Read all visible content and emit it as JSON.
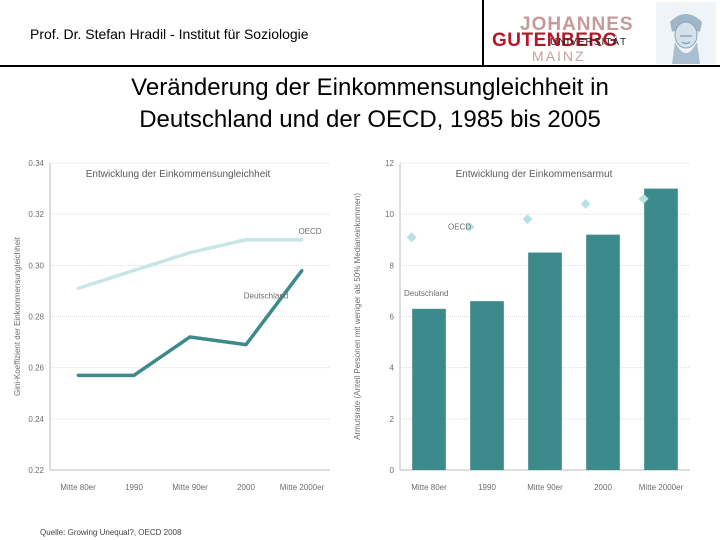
{
  "header": {
    "title": "Prof. Dr. Stefan Hradil - Institut für Soziologie",
    "logo_top": "JOHANNES",
    "logo_main": "GUTENBERG",
    "logo_univ": "UNIVERSITÄT",
    "logo_bottom": "MAINZ"
  },
  "slide": {
    "title_line1": "Veränderung der Einkommensungleichheit in",
    "title_line2": "Deutschland und der OECD, 1985 bis 2005"
  },
  "colors": {
    "oecd_line": "#c9e6e6",
    "germany_line": "#3d8a8c",
    "bar": "#3d8a8c",
    "diamond": "#b9e3e3",
    "grid": "#dcdcdc",
    "axis_text": "#6d6d6d"
  },
  "chart_data": [
    {
      "type": "line",
      "title": "Entwicklung der Einkommensungleichheit",
      "ylabel": "Gini-Koeffizient der Einkommensungleichheit",
      "xlabel": "",
      "categories": [
        "Mitte 80er",
        "1990",
        "Mitte 90er",
        "2000",
        "Mitte 2000er"
      ],
      "yticks": [
        "0.22",
        "0.24",
        "0.26",
        "0.28",
        "0.30",
        "0.32",
        "0.34"
      ],
      "ylim": [
        0.22,
        0.34
      ],
      "series": [
        {
          "name": "OECD",
          "values": [
            0.291,
            0.298,
            0.305,
            0.31,
            0.31
          ]
        },
        {
          "name": "Deutschland",
          "values": [
            0.257,
            0.257,
            0.272,
            0.269,
            0.298
          ]
        }
      ]
    },
    {
      "type": "bar",
      "title": "Entwicklung der Einkommensarmut",
      "ylabel": "Armutsrate (Anteil Personen mit weniger als 50% Medianeinkommen)",
      "xlabel": "",
      "categories": [
        "Mitte 80er",
        "1990",
        "Mitte 90er",
        "2000",
        "Mitte 2000er"
      ],
      "yticks": [
        "0",
        "2",
        "4",
        "6",
        "8",
        "10",
        "12"
      ],
      "ylim": [
        0,
        12
      ],
      "series": [
        {
          "name": "Deutschland",
          "values": [
            6.3,
            6.6,
            8.5,
            9.2,
            11.0
          ]
        },
        {
          "name": "OECD",
          "values": [
            9.1,
            9.5,
            9.8,
            10.4,
            10.6
          ]
        }
      ]
    }
  ],
  "source": "Quelle: Growing Unequal?, OECD 2008"
}
